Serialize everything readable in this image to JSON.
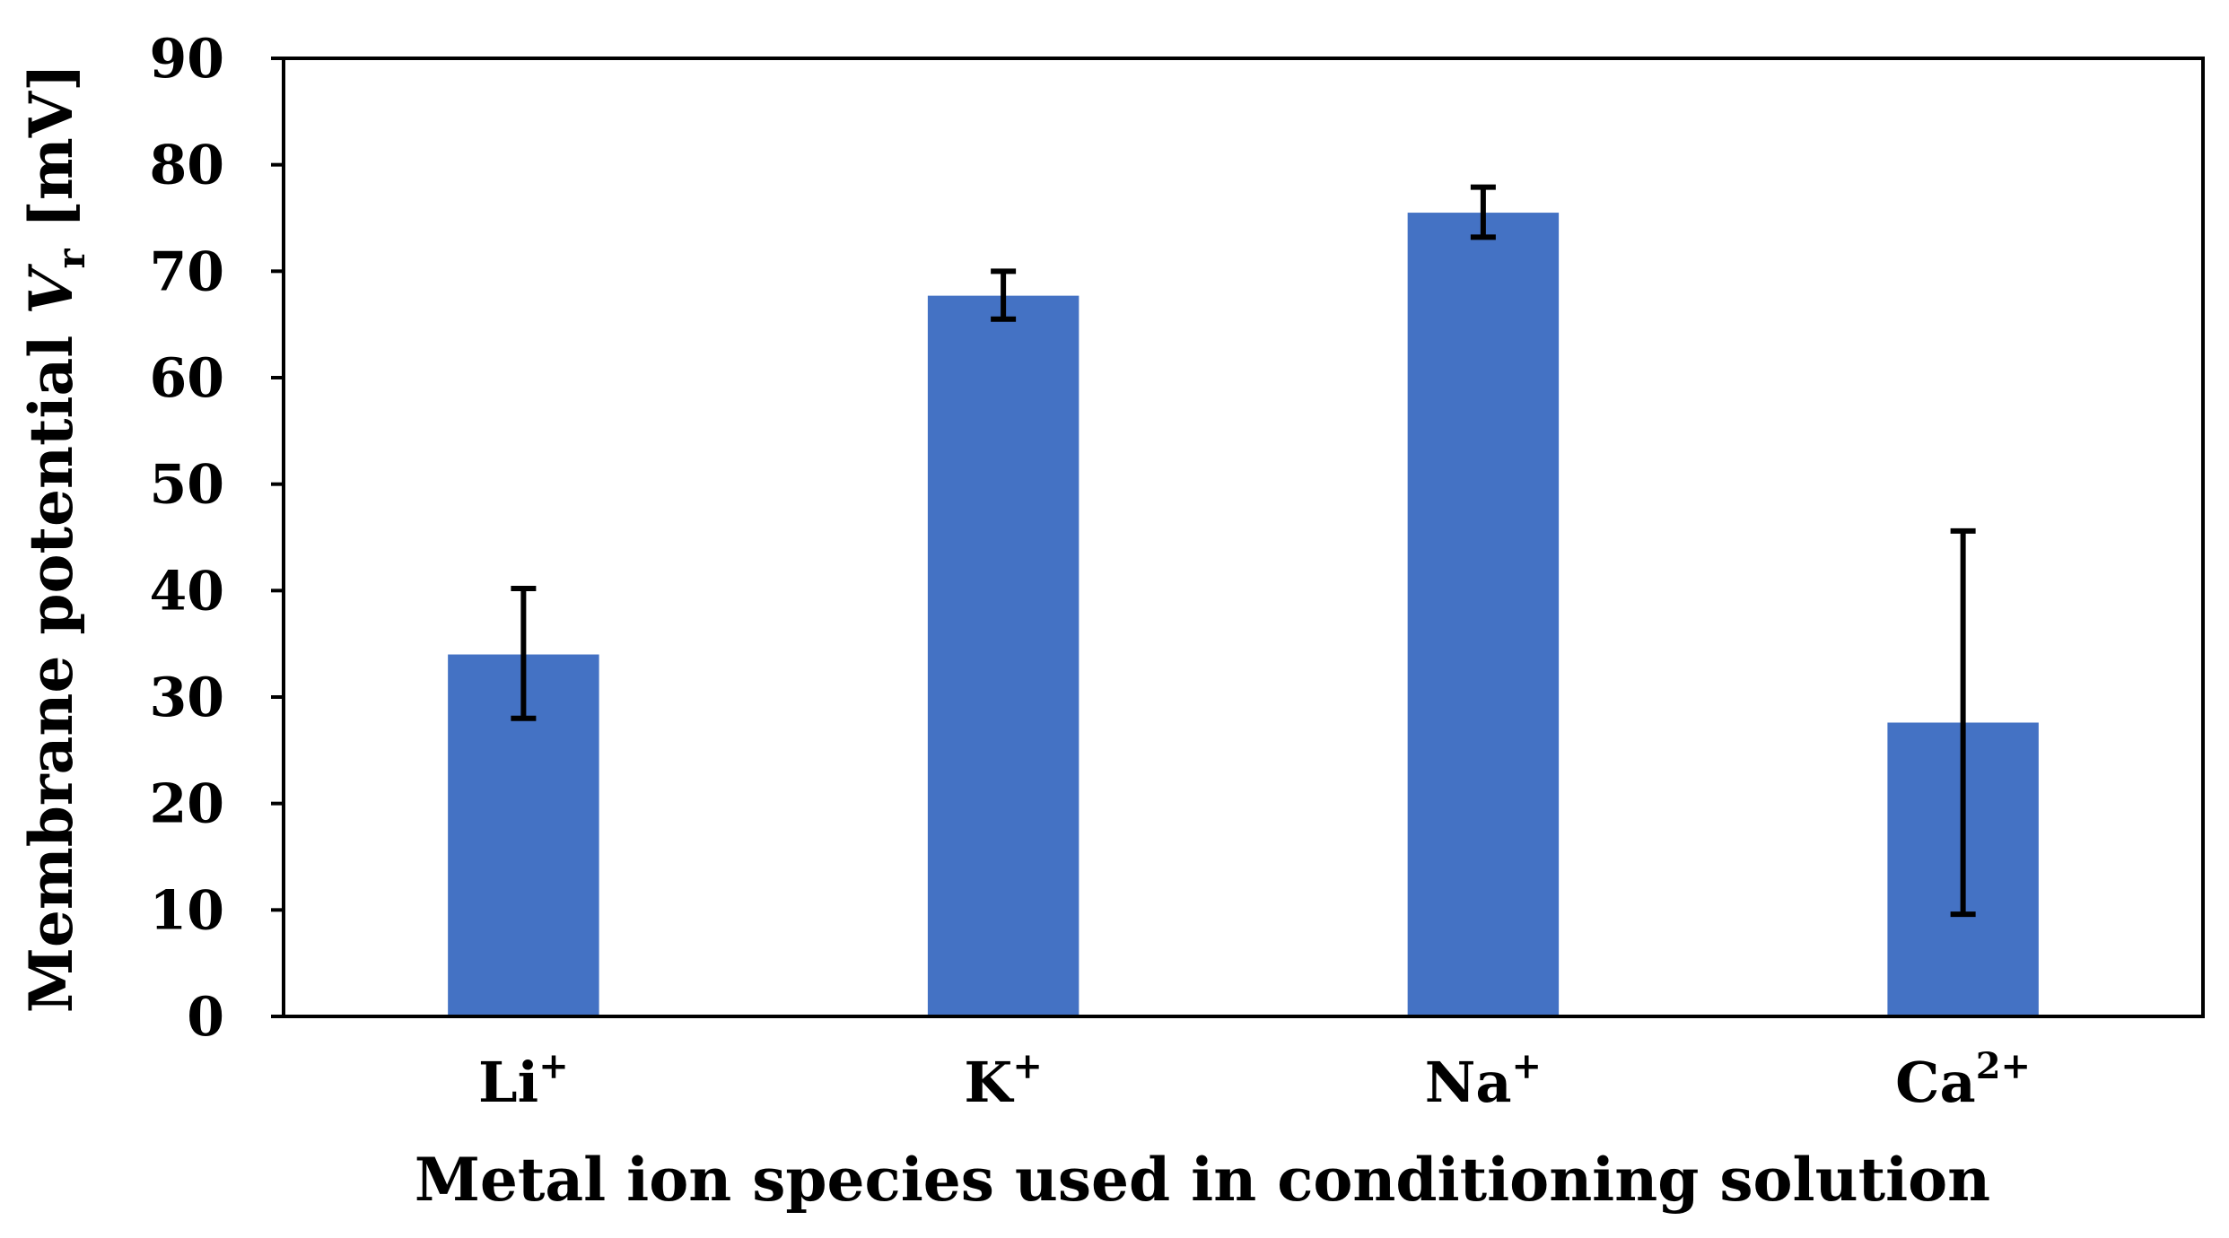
{
  "chart_data": {
    "type": "bar",
    "xlabel": "Metal ion species used in conditioning solution",
    "ylabel": {
      "prefix": "Membrane potential ",
      "symbol": "V",
      "subscript": "r",
      "unit": " [mV]"
    },
    "ylim": [
      0,
      90
    ],
    "yticks": [
      "0",
      "10",
      "20",
      "30",
      "40",
      "50",
      "60",
      "70",
      "80",
      "90"
    ],
    "grid": false,
    "categories": [
      {
        "base": "Li",
        "sup": "+"
      },
      {
        "base": "K",
        "sup": "+"
      },
      {
        "base": "Na",
        "sup": "+"
      },
      {
        "base": "Ca",
        "sup": "2+"
      }
    ],
    "values": [
      34,
      67.7,
      75.5,
      27.6
    ],
    "error_low": [
      28,
      65.5,
      73.2,
      9.6
    ],
    "error_high": [
      40.2,
      70,
      77.9,
      45.6
    ],
    "bar_color": "#4472C4",
    "axis_color": "#000000"
  }
}
